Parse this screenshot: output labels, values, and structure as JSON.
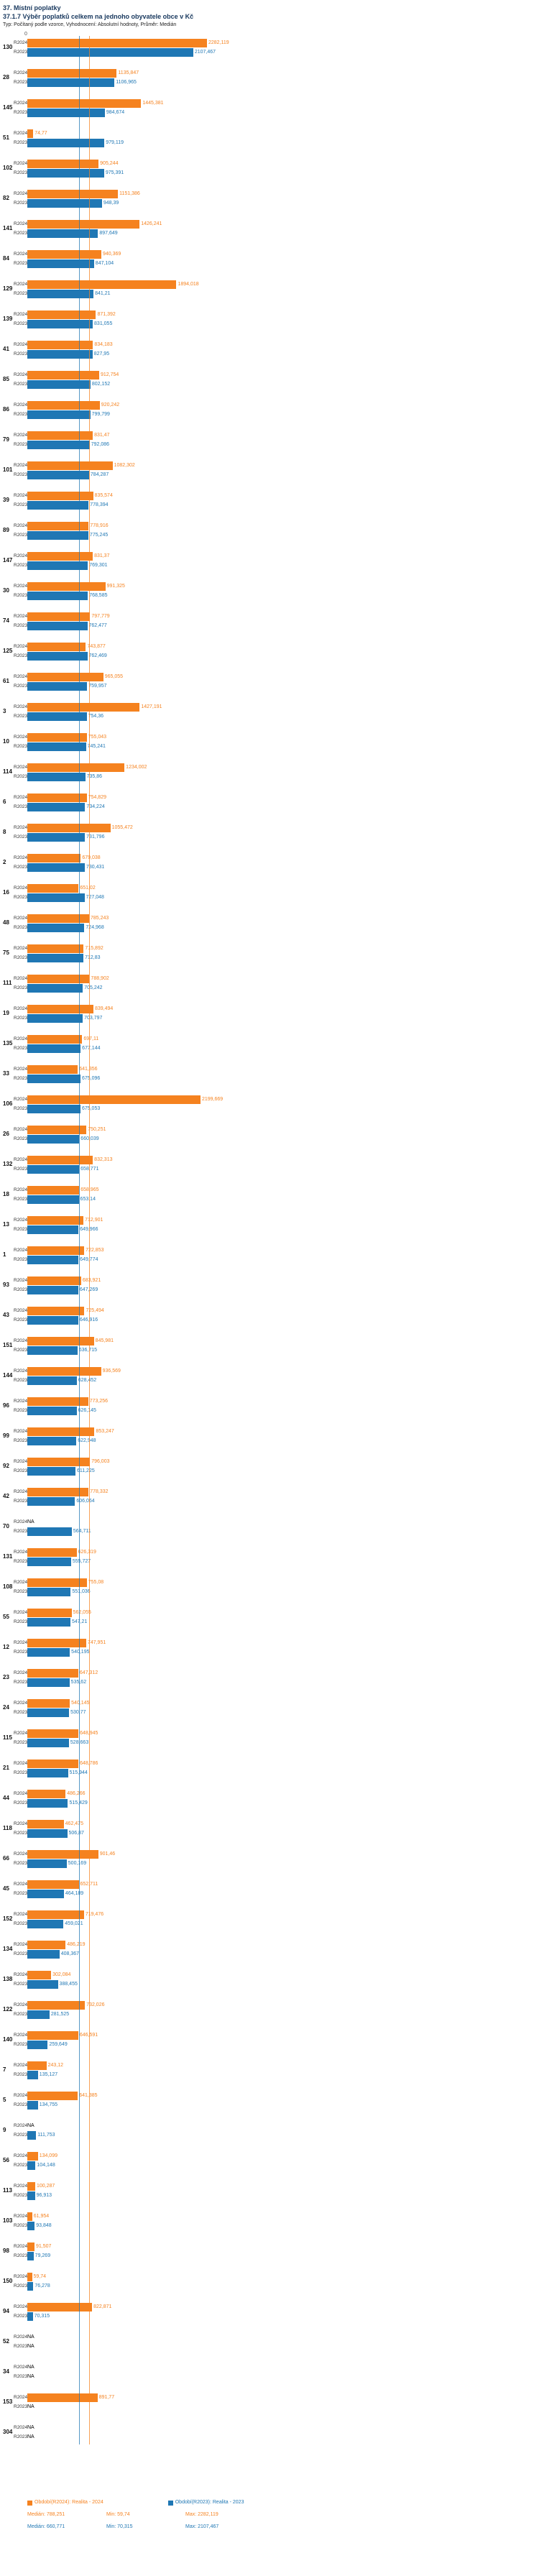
{
  "title": "37. Místní poplatky",
  "subtitle": "37.1.7 Výběr poplatků celkem na jednoho obyvatele obce v Kč",
  "meta": "Typ: Počítaný podle vzorce, Vyhodnocení: Absolutní hodnoty, Průměr: Medián",
  "axis": {
    "zero_label": "0"
  },
  "chart_data": {
    "type": "bar",
    "orientation": "horizontal",
    "title": "37.1.7 Výběr poplatků celkem na jednoho obyvatele obce v Kč",
    "value_unit": "Kč",
    "xlim": [
      0,
      2300
    ],
    "grid": false,
    "legend_position": "bottom",
    "medians": {
      "R2024": 788.251,
      "R2023": 660.771
    },
    "categories": [
      "130",
      "28",
      "145",
      "51",
      "102",
      "82",
      "141",
      "84",
      "129",
      "139",
      "41",
      "85",
      "86",
      "79",
      "101",
      "39",
      "89",
      "147",
      "30",
      "74",
      "125",
      "61",
      "3",
      "10",
      "114",
      "6",
      "8",
      "2",
      "16",
      "48",
      "75",
      "111",
      "19",
      "135",
      "33",
      "106",
      "26",
      "132",
      "18",
      "13",
      "1",
      "93",
      "43",
      "151",
      "144",
      "96",
      "99",
      "92",
      "42",
      "70",
      "131",
      "108",
      "55",
      "12",
      "23",
      "24",
      "115",
      "21",
      "44",
      "118",
      "66",
      "45",
      "152",
      "134",
      "138",
      "122",
      "140",
      "7",
      "5",
      "9",
      "56",
      "113",
      "103",
      "98",
      "150",
      "94",
      "52",
      "34",
      "153",
      "304"
    ],
    "series": [
      {
        "name": "R2024",
        "color": "#f5821f",
        "legend": "Období(R2024): Realita - 2024",
        "stats_display": [
          "Medián: 788,251",
          "Min: 59,74",
          "Max: 2282,119"
        ],
        "values": [
          2282.119,
          1135.847,
          1445.381,
          74.77,
          905.244,
          1151.386,
          1426.241,
          940.369,
          1894.018,
          871.392,
          834.183,
          912.754,
          920.242,
          831.47,
          1082.302,
          835.574,
          778.916,
          831.37,
          991.325,
          797.779,
          743.877,
          965.055,
          1427.191,
          755.043,
          1234.002,
          754.829,
          1055.472,
          679.038,
          651.02,
          785.243,
          715.892,
          788.902,
          839.494,
          697.11,
          641.356,
          2199.669,
          750.251,
          832.313,
          658.965,
          712.901,
          722.853,
          683.921,
          725.494,
          845.981,
          936.569,
          773.256,
          853.247,
          796.003,
          778.332,
          null,
          626.319,
          755.08,
          562.055,
          747.951,
          647.312,
          540.145,
          648.945,
          648.786,
          486.266,
          462.475,
          901.46,
          652.711,
          719.476,
          486.219,
          302.084,
          732.026,
          646.591,
          243.12,
          641.385,
          null,
          134.099,
          100.287,
          61.954,
          91.507,
          59.74,
          822.871,
          null,
          null,
          891.77,
          null
        ]
      },
      {
        "name": "R2023",
        "color": "#1f77b4",
        "legend": "Období(R2023): Realita - 2023",
        "stats_display": [
          "Medián: 660,771",
          "Min: 70,315",
          "Max: 2107,467"
        ],
        "values": [
          2107.467,
          1106.965,
          984.674,
          979.119,
          975.391,
          948.39,
          897.649,
          847.104,
          841.21,
          831.055,
          827.95,
          802.152,
          799.799,
          792.086,
          784.287,
          778.394,
          775.245,
          769.301,
          768.585,
          762.477,
          762.469,
          759.957,
          754.36,
          745.241,
          735.86,
          734.224,
          731.796,
          730.431,
          727.048,
          724.968,
          712.83,
          705.242,
          703.797,
          677.144,
          675.096,
          675.053,
          660.039,
          658.771,
          653.14,
          649.966,
          649.774,
          647.269,
          646.916,
          636.715,
          628.452,
          626.145,
          622.948,
          611.225,
          606.064,
          564.711,
          555.727,
          551.036,
          547.21,
          540.195,
          535.62,
          530.77,
          528.663,
          515.944,
          515.429,
          506.87,
          500.169,
          464.189,
          459.021,
          408.367,
          388.455,
          281.525,
          259.649,
          135.127,
          134.755,
          111.753,
          104.148,
          96.913,
          93.848,
          79.269,
          76.278,
          70.315,
          null,
          null,
          null,
          null
        ]
      }
    ],
    "na_label": "NA"
  }
}
